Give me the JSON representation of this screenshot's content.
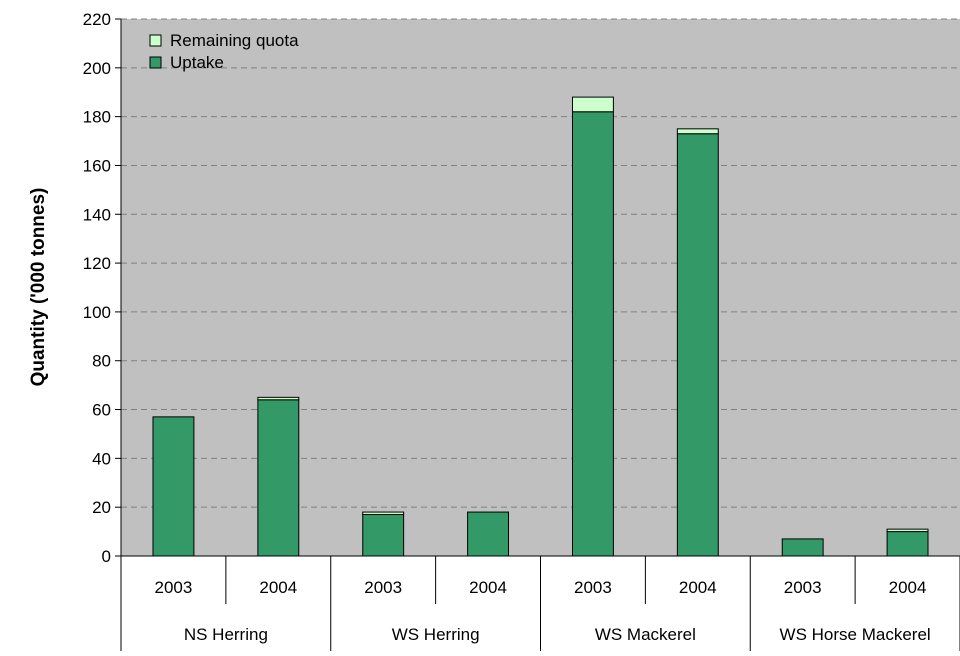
{
  "chart_data": {
    "type": "bar",
    "stacked": true,
    "title": "",
    "xlabel": "",
    "ylabel": "Quantity ('000 tonnes)",
    "ylim": [
      0,
      220
    ],
    "yticks": [
      0,
      20,
      40,
      60,
      80,
      100,
      120,
      140,
      160,
      180,
      200,
      220
    ],
    "grid": true,
    "legend_position": "top-left",
    "groups": [
      "NS Herring",
      "WS Herring",
      "WS Mackerel",
      "WS Horse Mackerel"
    ],
    "categories": [
      "2003",
      "2004",
      "2003",
      "2004",
      "2003",
      "2004",
      "2003",
      "2004"
    ],
    "category_group": [
      0,
      0,
      1,
      1,
      2,
      2,
      3,
      3
    ],
    "series": [
      {
        "name": "Uptake",
        "color": "#339966",
        "values": [
          57,
          64,
          17,
          18,
          182,
          173,
          7,
          10
        ]
      },
      {
        "name": "Remaining quota",
        "color": "#CCFFCC",
        "values": [
          0,
          1,
          1,
          0,
          6,
          2,
          0,
          1
        ]
      }
    ],
    "legend": [
      "Remaining quota",
      "Uptake"
    ],
    "colors": {
      "plot_background": "#C0C0C0",
      "grid": "#808080"
    }
  }
}
